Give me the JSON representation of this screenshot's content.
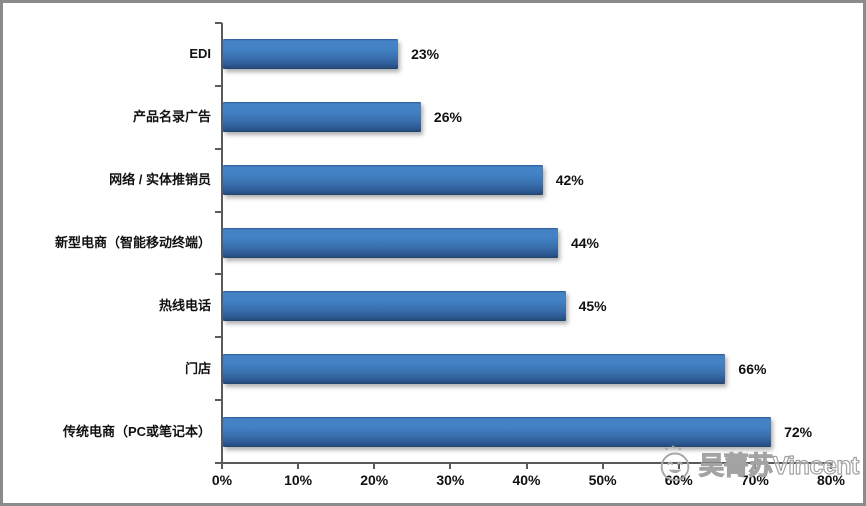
{
  "chart_data": {
    "type": "bar",
    "orientation": "horizontal",
    "title": "",
    "xlabel": "",
    "ylabel": "",
    "categories": [
      "EDI",
      "产品名录广告",
      "网络 / 实体推销员",
      "新型电商（智能移动终端）",
      "热线电话",
      "门店",
      "传统电商（PC或笔记本）"
    ],
    "values": [
      23,
      26,
      42,
      44,
      45,
      66,
      72
    ],
    "value_labels": [
      "23%",
      "26%",
      "42%",
      "44%",
      "45%",
      "66%",
      "72%"
    ],
    "xlim": [
      0,
      80
    ],
    "x_tick_step": 10,
    "x_tick_labels": [
      "0%",
      "10%",
      "20%",
      "30%",
      "40%",
      "50%",
      "60%",
      "70%",
      "80%"
    ],
    "grid": false,
    "legend": false,
    "bar_color": "#3c74b2",
    "axis_color": "#5a5a5a",
    "label_color": "#111111"
  },
  "watermark": {
    "text": "吴菁苏Vincent",
    "icon": "smiley-face",
    "color": "#a3a3a3"
  },
  "frame": {
    "border_color": "#8b8b8b",
    "background": "#ffffff"
  }
}
